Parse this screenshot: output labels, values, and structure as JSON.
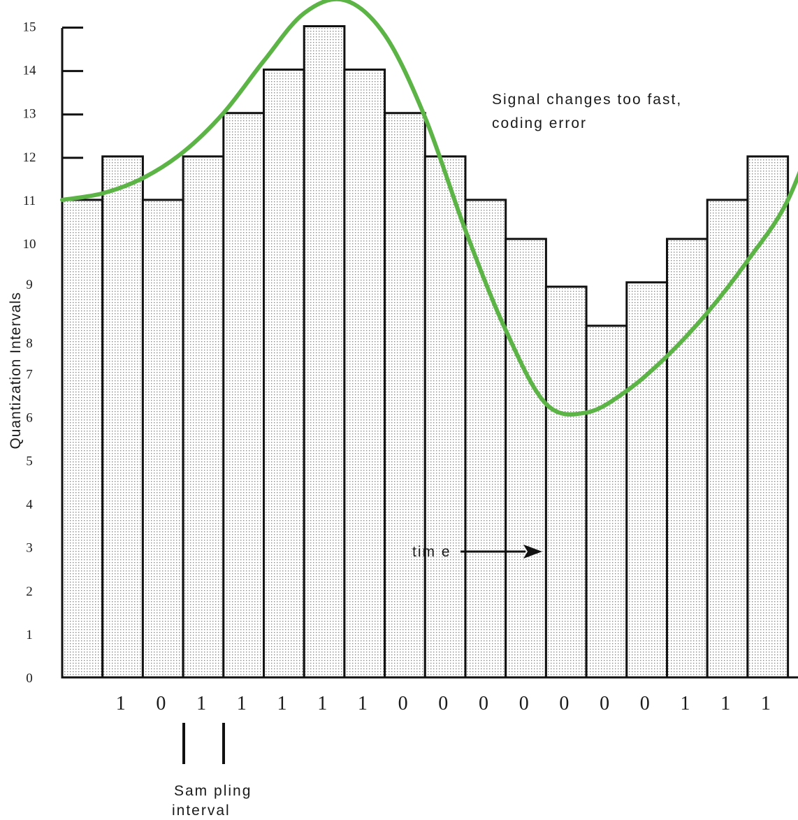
{
  "chart_data": {
    "type": "bar",
    "ylabel": "Quantization Intervals",
    "y_ticks": [
      "0",
      "1",
      "2",
      "3",
      "4",
      "5",
      "6",
      "7",
      "8",
      "9",
      "10",
      "11",
      "12",
      "13",
      "14",
      "15"
    ],
    "bar_values": [
      11,
      12,
      11,
      12,
      13,
      14,
      15,
      14,
      13,
      12,
      11,
      10.1,
      9,
      8.1,
      9.1,
      10.1,
      11,
      12
    ],
    "bits": [
      {
        "text": "1",
        "after_bar": 1
      },
      {
        "text": "0",
        "after_bar": 2
      },
      {
        "text": "1",
        "after_bar": 3
      },
      {
        "text": "1",
        "after_bar": 4
      },
      {
        "text": "1",
        "after_bar": 5
      },
      {
        "text": "1",
        "after_bar": 6
      },
      {
        "text": "1",
        "after_bar": 7
      },
      {
        "text": "0",
        "after_bar": 8
      },
      {
        "text": "0",
        "after_bar": 9
      },
      {
        "text": "0",
        "after_bar": 10
      },
      {
        "text": "0",
        "after_bar": 11
      },
      {
        "text": "0",
        "after_bar": 12
      },
      {
        "text": "0",
        "after_bar": 13
      },
      {
        "text": "0",
        "after_bar": 14
      },
      {
        "text": "1",
        "after_bar": 15
      },
      {
        "text": "1",
        "after_bar": 16
      },
      {
        "text": "1",
        "after_bar": 17
      }
    ],
    "signal_curve": {
      "color": "#5cb346",
      "points": [
        [
          0,
          11.0
        ],
        [
          1,
          11.15
        ],
        [
          2,
          11.5
        ],
        [
          3,
          12.1
        ],
        [
          4,
          13.0
        ],
        [
          5,
          14.2
        ],
        [
          6,
          15.3
        ],
        [
          7,
          15.6
        ],
        [
          8,
          14.8
        ],
        [
          9,
          12.9
        ],
        [
          10,
          10.3
        ],
        [
          11,
          8.0
        ],
        [
          12,
          6.3
        ],
        [
          13,
          6.1
        ],
        [
          14,
          6.6
        ],
        [
          15,
          7.4
        ],
        [
          16,
          8.4
        ],
        [
          17,
          9.6
        ],
        [
          18,
          11.0
        ],
        [
          18.9,
          13.2
        ]
      ]
    },
    "annotations": {
      "error_line1": "Signal changes too fast,",
      "error_line2": "coding error",
      "time_label": "tim e",
      "sampling_line1": "Sam pling",
      "sampling_line2": "interval"
    }
  }
}
